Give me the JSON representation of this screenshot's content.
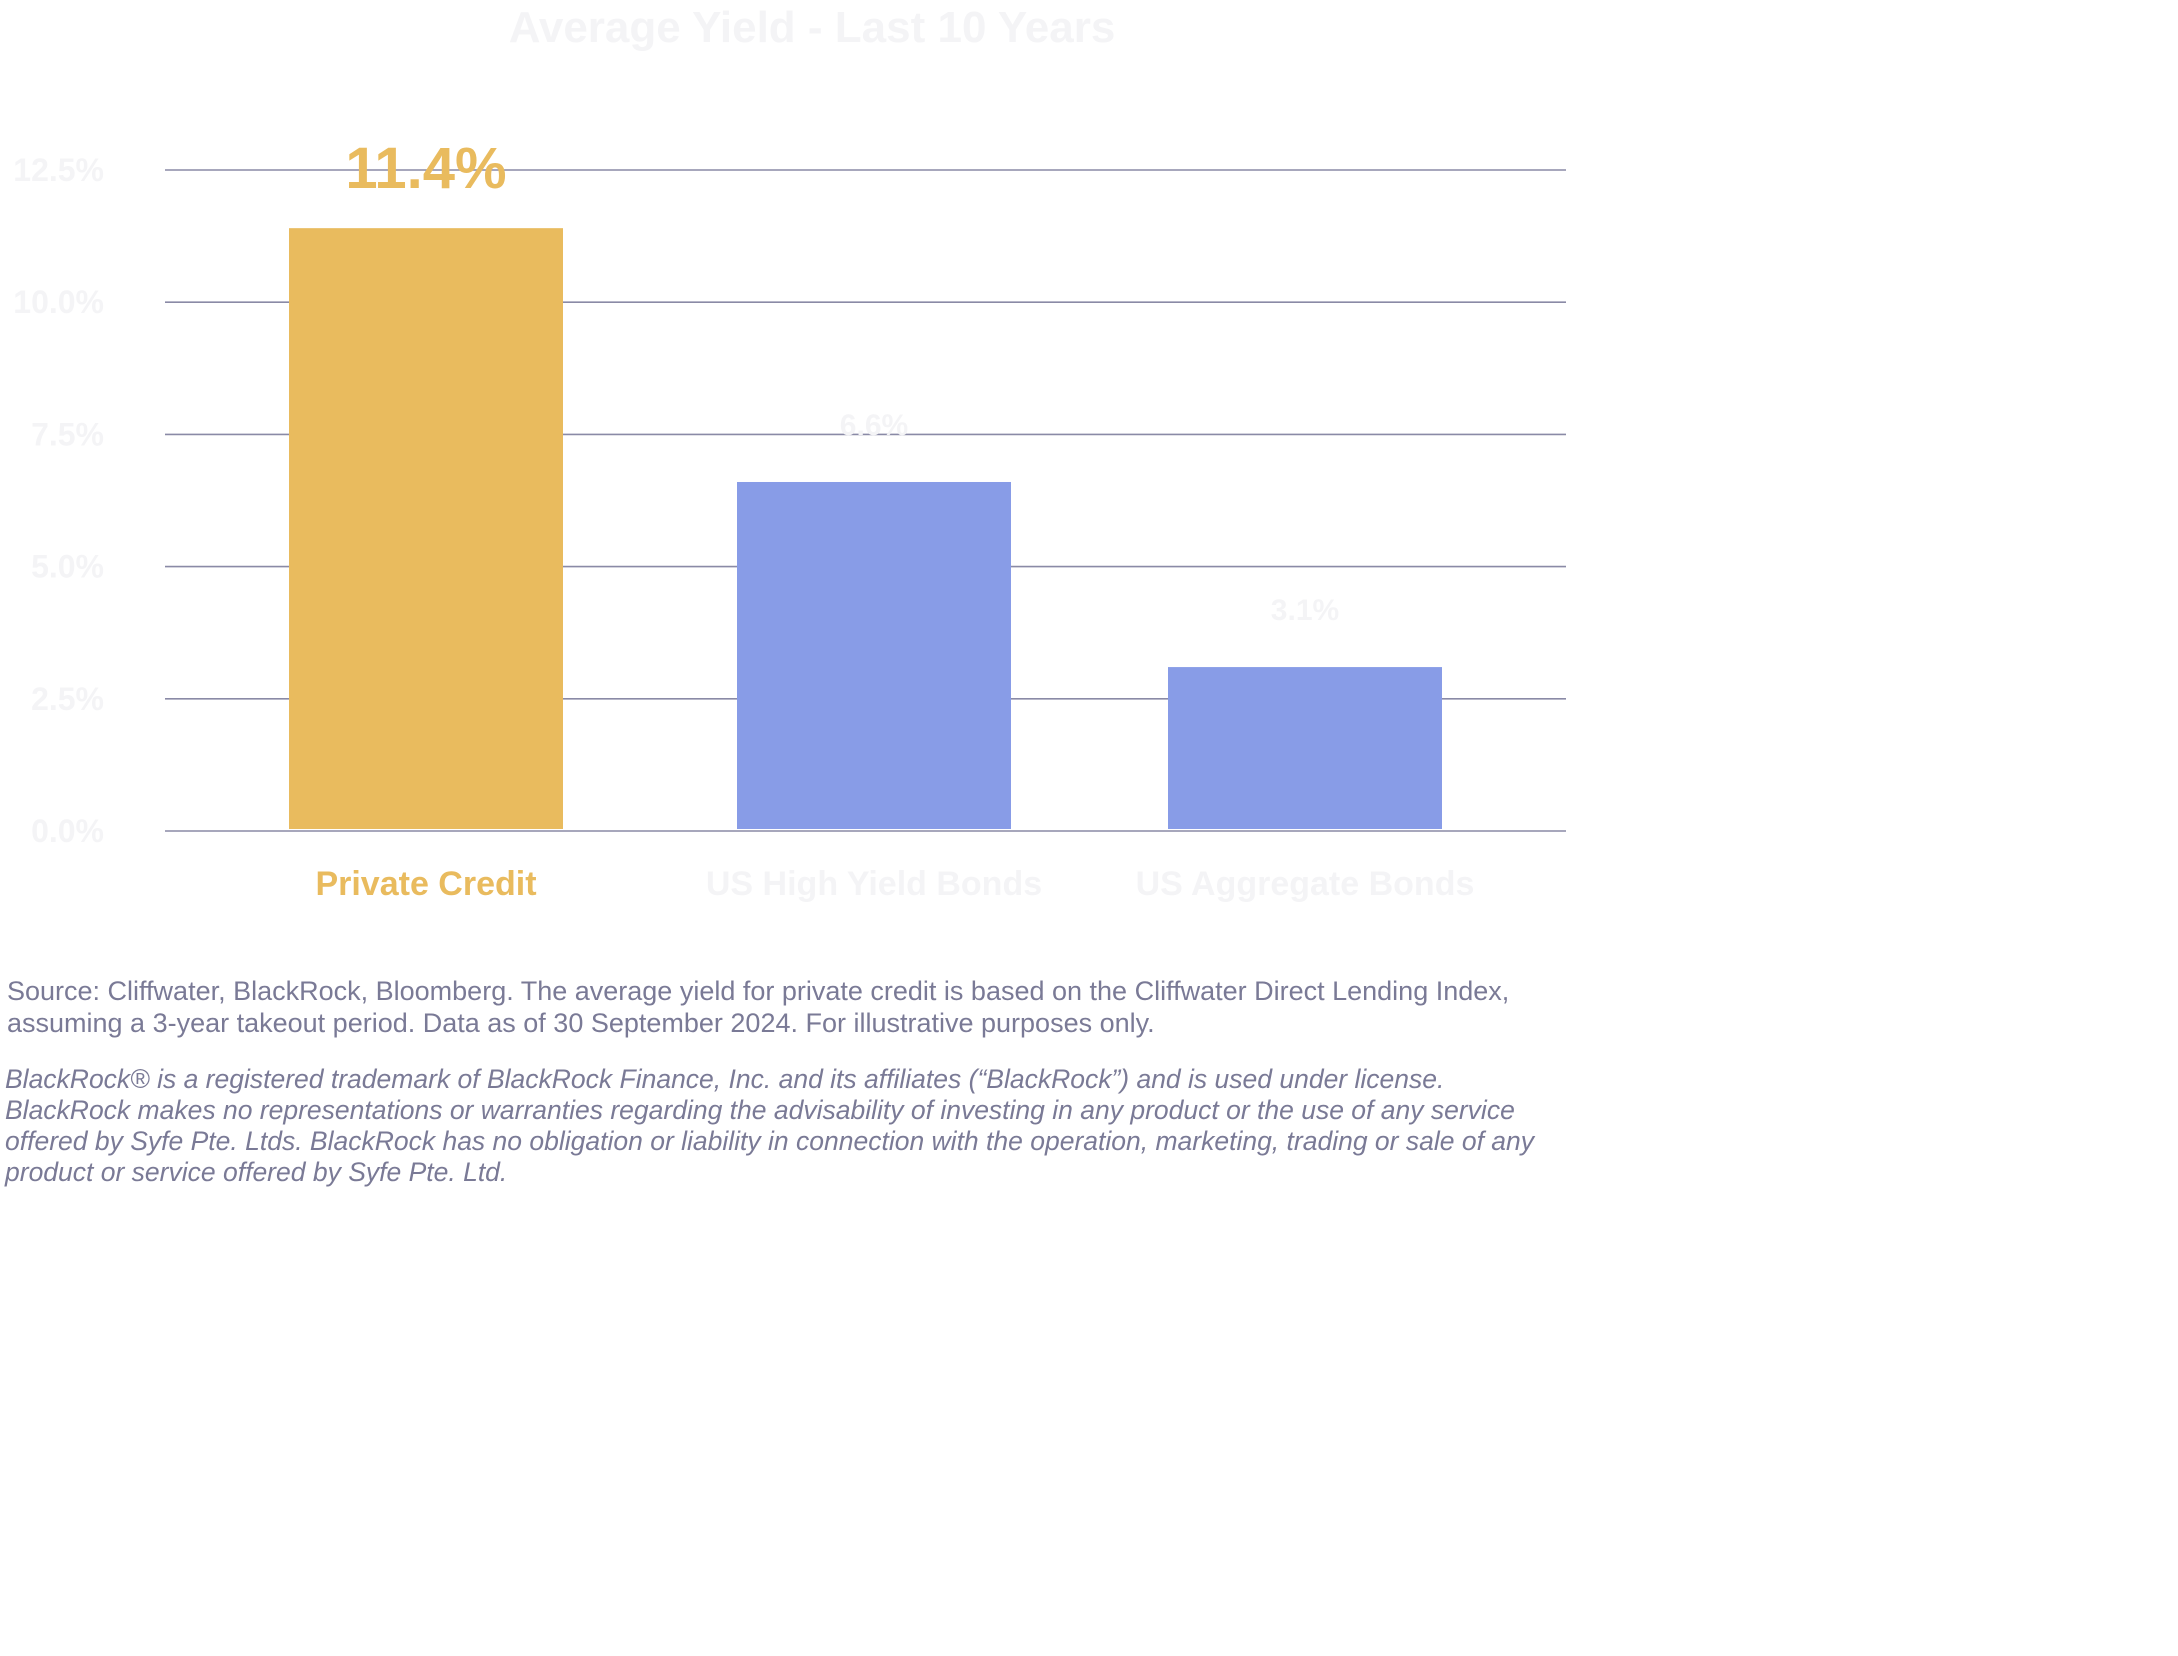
{
  "chart_data": {
    "type": "bar",
    "title": "Average Yield - Last 10 Years",
    "categories": [
      "Private Credit",
      "US High Yield Bonds",
      "US Aggregate Bonds"
    ],
    "values": [
      11.4,
      6.6,
      3.1
    ],
    "value_labels": [
      "11.4%",
      "6.6%",
      "3.1%"
    ],
    "bar_colors": [
      "#e9bb5e",
      "#889ce7",
      "#889ce7"
    ],
    "highlight_color": "#e9bb5e",
    "muted_text_color": "#f4f4f6",
    "grid_color": "#8a8aa6",
    "ylim": [
      0,
      12.5
    ],
    "yticks": [
      0,
      2.5,
      5,
      7.5,
      10,
      12.5
    ],
    "ytick_labels": [
      "0.0%",
      "2.5%",
      "5.0%",
      "7.5%",
      "10.0%",
      "12.5%"
    ],
    "xlabel": "",
    "ylabel": "",
    "grid": true,
    "legend": "none"
  },
  "footnotes": {
    "source": "Source: Cliffwater, BlackRock, Bloomberg. The average yield for private credit is based on the Cliffwater Direct Lending Index, assuming a 3-year takeout period. Data as of 30 September 2024. For illustrative purposes only.",
    "disclaimer": "BlackRock® is a registered trademark of BlackRock Finance, Inc. and its affiliates (“BlackRock”) and is used under license. BlackRock makes no representations or warranties regarding the advisability of investing in any product or the use of any service offered by Syfe Pte. Ltds. BlackRock has no obligation or liability in connection with the operation, marketing, trading or sale of any product or service offered by Syfe Pte. Ltd."
  }
}
